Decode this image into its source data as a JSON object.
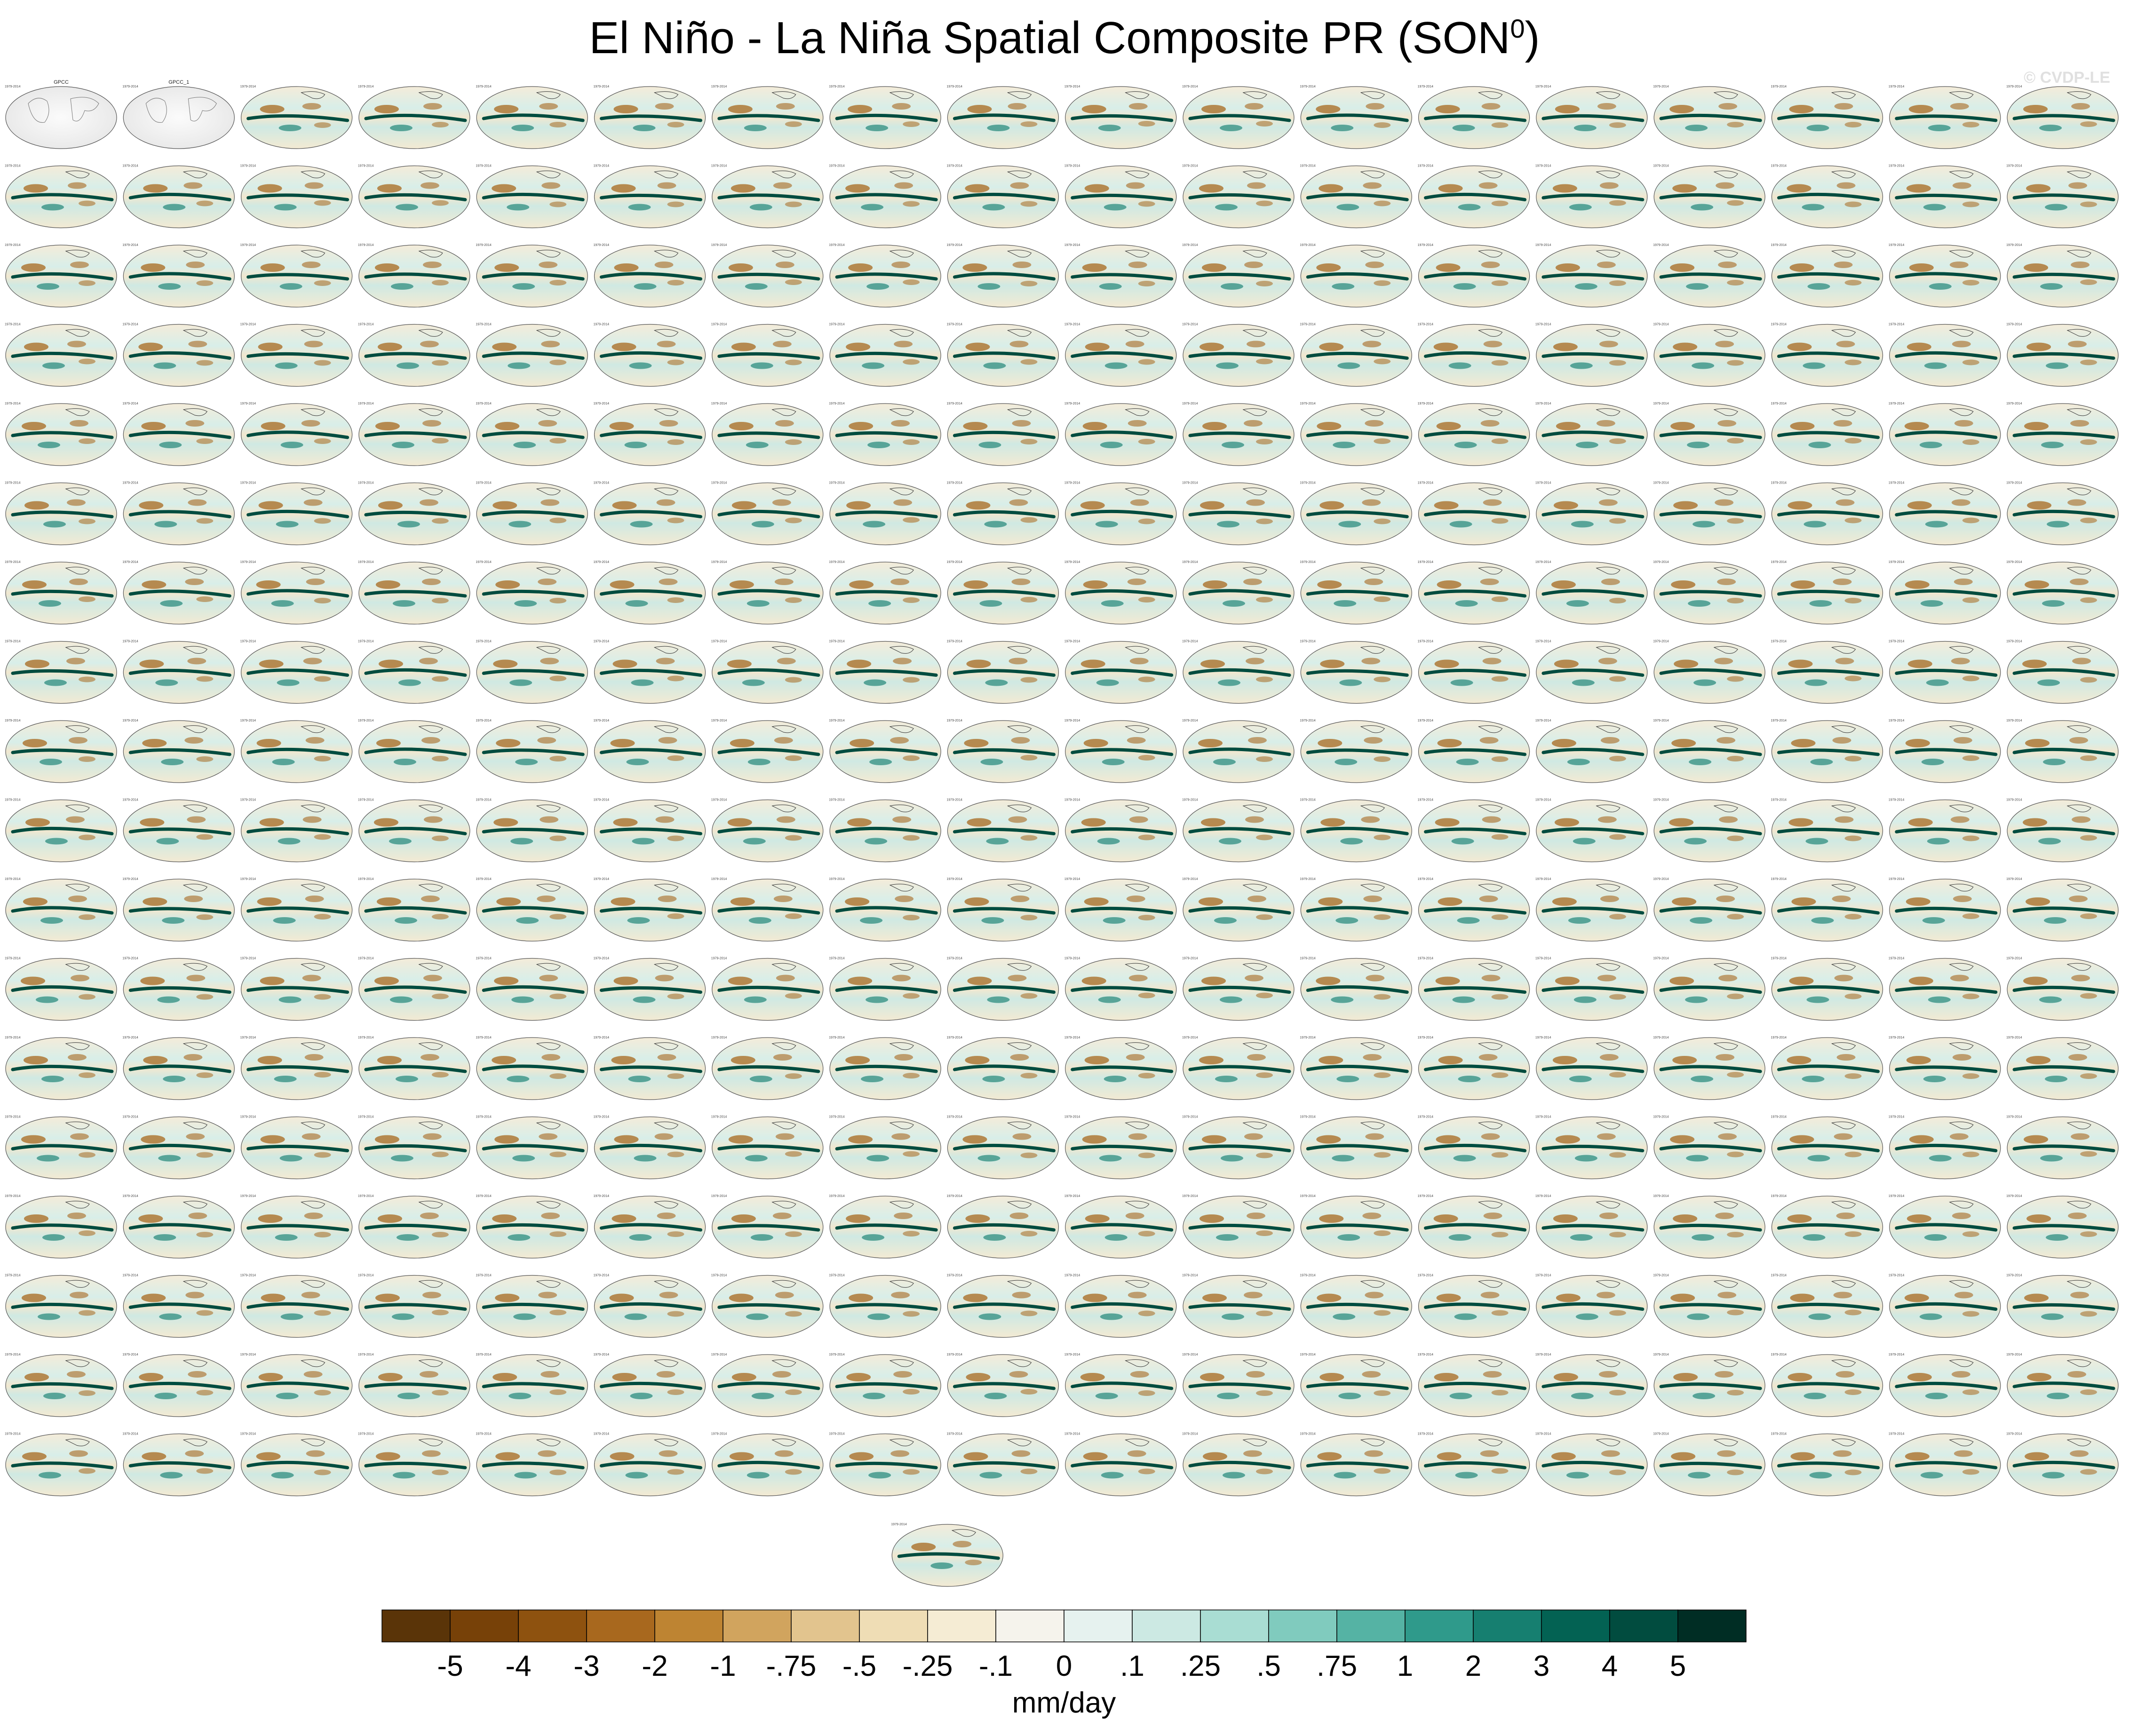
{
  "title": {
    "main": "El Niño - La Niña Spatial Composite PR (SON",
    "superscript": "0",
    "close": ")"
  },
  "watermark": "© CVDP-LE",
  "panels": {
    "rows": 18,
    "cols": 18,
    "extra_panels": 1,
    "observations": [
      "GPCC",
      "GPCC_1"
    ],
    "period_label": "1979-2014"
  },
  "chart_data": {
    "type": "heatmap",
    "title": "El Niño - La Niña Spatial Composite PR (SON0)",
    "colorbar": {
      "units": "mm/day",
      "tick_labels": [
        "-5",
        "-4",
        "-3",
        "-2",
        "-1",
        "-.75",
        "-.5",
        "-.25",
        "-.1",
        "0",
        ".1",
        ".25",
        ".5",
        ".75",
        "1",
        "2",
        "3",
        "4",
        "5"
      ],
      "colors": [
        "#5a3408",
        "#774108",
        "#8e520f",
        "#a8681e",
        "#be8432",
        "#d1a45e",
        "#e2c48e",
        "#efddb5",
        "#f5ecd4",
        "#f5f3ec",
        "#e6f2ef",
        "#cce9e3",
        "#a9ddd3",
        "#80cbbe",
        "#55b3a4",
        "#2f9a8b",
        "#167f70",
        "#036253",
        "#014c3f",
        "#002d24"
      ]
    }
  }
}
